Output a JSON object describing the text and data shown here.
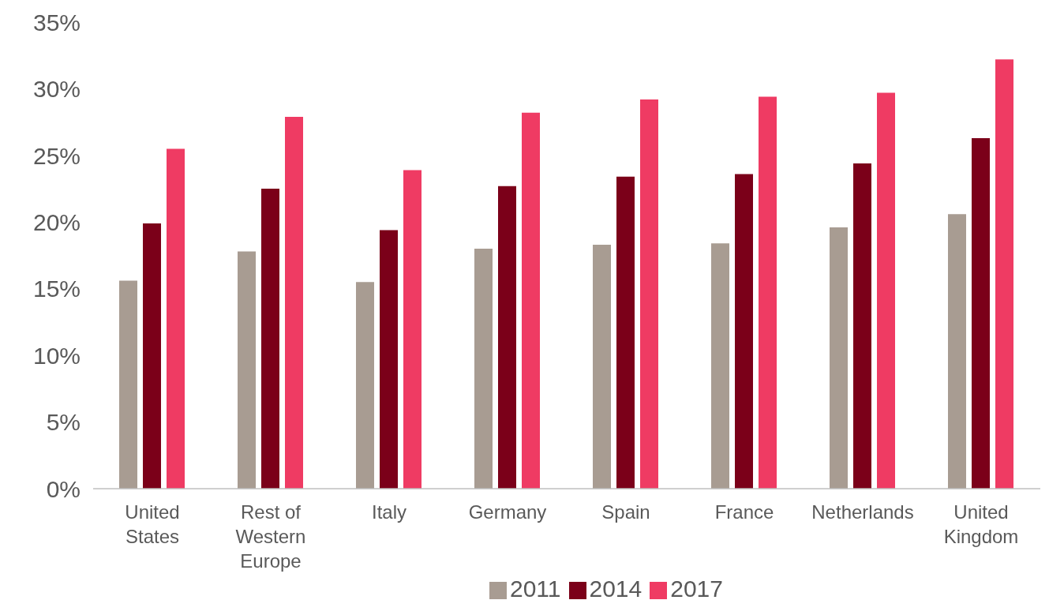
{
  "chart_data": {
    "type": "bar",
    "categories": [
      "United States",
      "Rest of Western Europe",
      "Italy",
      "Germany",
      "Spain",
      "France",
      "Netherlands",
      "United Kingdom"
    ],
    "series": [
      {
        "name": "2011",
        "color": "#a89c92",
        "values": [
          15.6,
          17.8,
          15.5,
          18.0,
          18.3,
          18.4,
          19.6,
          20.6
        ]
      },
      {
        "name": "2014",
        "color": "#7b0019",
        "values": [
          19.9,
          22.5,
          19.4,
          22.7,
          23.4,
          23.6,
          24.4,
          26.3
        ]
      },
      {
        "name": "2017",
        "color": "#ef3b63",
        "values": [
          25.5,
          27.9,
          23.9,
          28.2,
          29.2,
          29.4,
          29.7,
          32.2
        ]
      }
    ],
    "ylim": [
      0,
      35
    ],
    "yticks": [
      {
        "value": 0,
        "label": "0%"
      },
      {
        "value": 5,
        "label": "5%"
      },
      {
        "value": 10,
        "label": "10%"
      },
      {
        "value": 15,
        "label": "15%"
      },
      {
        "value": 20,
        "label": "20%"
      },
      {
        "value": 25,
        "label": "25%"
      },
      {
        "value": 30,
        "label": "30%"
      },
      {
        "value": 35,
        "label": "35%"
      }
    ],
    "grid": false,
    "legend": "bottom"
  }
}
